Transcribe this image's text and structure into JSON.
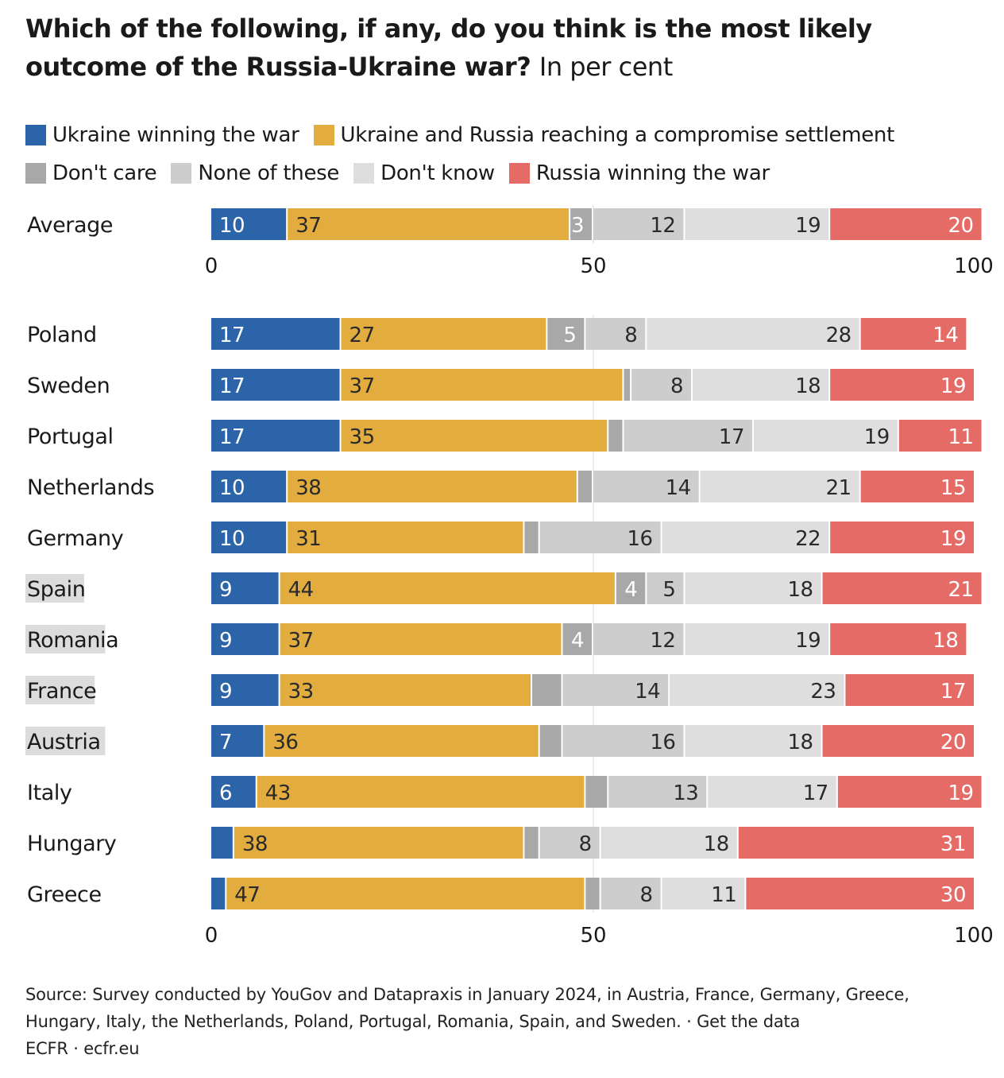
{
  "title": "Which of the following, if any, do you think is the most likely outcome of the Russia-Ukraine war?",
  "subtitle": "In per cent",
  "legend": [
    {
      "label": "Ukraine winning the war",
      "color": "#2b64a8"
    },
    {
      "label": "Ukraine and Russia reaching a compromise settlement",
      "color": "#e3ac3f"
    },
    {
      "label": "Don't care",
      "color": "#a8a8a8"
    },
    {
      "label": "None of these",
      "color": "#cdcdcd"
    },
    {
      "label": "Don't know",
      "color": "#dedede"
    },
    {
      "label": "Russia winning the war",
      "color": "#e56b66"
    }
  ],
  "source": {
    "text": "Source: Survey conducted by YouGov and Datapraxis in January 2024, in Austria, France, Germany, Greece, Hungary, Italy, the Netherlands, Poland, Portugal, Romania, Spain, and Sweden. · Get the data",
    "credit": "ECFR · ecfr.eu"
  },
  "chart_data": [
    {
      "type": "bar",
      "orientation": "horizontal",
      "stacked": true,
      "xlim": [
        0,
        100
      ],
      "xticks": [
        0,
        50,
        100
      ],
      "categories": [
        "Average"
      ],
      "series": [
        {
          "name": "Ukraine winning the war",
          "values": [
            10
          ]
        },
        {
          "name": "Ukraine and Russia reaching a compromise settlement",
          "values": [
            37
          ]
        },
        {
          "name": "Don't care",
          "values": [
            3
          ]
        },
        {
          "name": "None of these",
          "values": [
            12
          ]
        },
        {
          "name": "Don't know",
          "values": [
            19
          ]
        },
        {
          "name": "Russia winning the war",
          "values": [
            20
          ]
        }
      ]
    },
    {
      "type": "bar",
      "orientation": "horizontal",
      "stacked": true,
      "xlim": [
        0,
        100
      ],
      "xticks": [
        0,
        50,
        100
      ],
      "categories": [
        "Poland",
        "Sweden",
        "Portugal",
        "Netherlands",
        "Germany",
        "Spain",
        "Romania",
        "France",
        "Austria",
        "Italy",
        "Hungary",
        "Greece"
      ],
      "highlighted_categories": [
        "Spain",
        "Romania",
        "France",
        "Austria"
      ],
      "series": [
        {
          "name": "Ukraine winning the war",
          "values": [
            17,
            17,
            17,
            10,
            10,
            9,
            9,
            9,
            7,
            6,
            3,
            2
          ]
        },
        {
          "name": "Ukraine and Russia reaching a compromise settlement",
          "values": [
            27,
            37,
            35,
            38,
            31,
            44,
            37,
            33,
            36,
            43,
            38,
            47
          ]
        },
        {
          "name": "Don't care",
          "values": [
            5,
            1,
            2,
            2,
            2,
            4,
            4,
            4,
            3,
            3,
            2,
            2
          ]
        },
        {
          "name": "None of these",
          "values": [
            8,
            8,
            17,
            14,
            16,
            5,
            12,
            14,
            16,
            13,
            8,
            8
          ]
        },
        {
          "name": "Don't know",
          "values": [
            28,
            18,
            19,
            21,
            22,
            18,
            19,
            23,
            18,
            17,
            18,
            11
          ]
        },
        {
          "name": "Russia winning the war",
          "values": [
            14,
            19,
            11,
            15,
            19,
            21,
            18,
            17,
            20,
            19,
            31,
            30
          ]
        }
      ],
      "hidden_labels": {
        "Ukraine winning the war": [
          "Hungary",
          "Greece"
        ],
        "Don't care": [
          "Sweden",
          "Portugal",
          "Netherlands",
          "Germany",
          "France",
          "Austria",
          "Italy",
          "Hungary",
          "Greece"
        ]
      }
    }
  ]
}
